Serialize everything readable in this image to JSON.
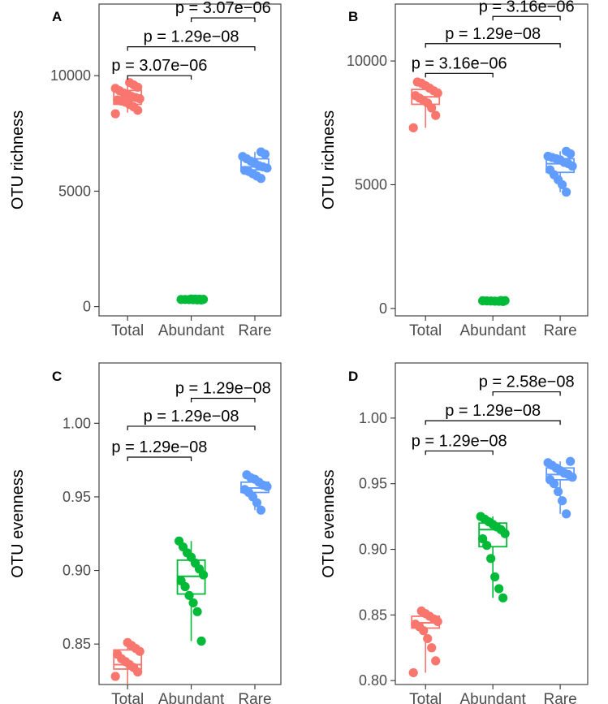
{
  "figure": {
    "description": "Four box plots comparing OTU richness and evenness across Total, Abundant and Rare subcommunities"
  },
  "chart_data": [
    {
      "panel": "A",
      "type": "box",
      "ylabel": "OTU richness",
      "xlabel": "",
      "categories": [
        "Total",
        "Abundant",
        "Rare"
      ],
      "colors": [
        "#F8766D",
        "#00BA38",
        "#619CFF"
      ],
      "ylim": [
        -400,
        13100
      ],
      "yticks": [
        0,
        5000,
        10000
      ],
      "boxes": [
        {
          "q1": 8760,
          "median": 8980,
          "q3": 9360,
          "lo": 8400,
          "hi": 9700
        },
        {
          "q1": 300,
          "median": 310,
          "q3": 320,
          "lo": 290,
          "hi": 330
        },
        {
          "q1": 5920,
          "median": 6050,
          "q3": 6400,
          "lo": 5550,
          "hi": 6700
        }
      ],
      "points": [
        [
          8350,
          8500,
          8650,
          8750,
          8850,
          8900,
          8950,
          9000,
          9050,
          9100,
          9200,
          9250,
          9350,
          9450,
          9500,
          9600,
          9700
        ],
        [
          290,
          295,
          300,
          305,
          310,
          310,
          315,
          320,
          325,
          330
        ],
        [
          5550,
          5650,
          5750,
          5850,
          5900,
          6000,
          6050,
          6100,
          6200,
          6300,
          6400,
          6500,
          6600,
          6700
        ]
      ],
      "comparisons": [
        {
          "label": "p = 3.07e−06",
          "pair": [
            0,
            1
          ],
          "y": 10000
        },
        {
          "label": "p = 1.29e−08",
          "pair": [
            0,
            2
          ],
          "y": 11250
        },
        {
          "label": "p = 3.07e−06",
          "pair": [
            1,
            2
          ],
          "y": 12500
        }
      ]
    },
    {
      "panel": "B",
      "type": "box",
      "ylabel": "OTU richness",
      "xlabel": "",
      "categories": [
        "Total",
        "Abundant",
        "Rare"
      ],
      "colors": [
        "#F8766D",
        "#00BA38",
        "#619CFF"
      ],
      "ylim": [
        -300,
        12300
      ],
      "yticks": [
        0,
        5000,
        10000
      ],
      "boxes": [
        {
          "q1": 8250,
          "median": 8550,
          "q3": 8850,
          "lo": 7300,
          "hi": 9150
        },
        {
          "q1": 290,
          "median": 300,
          "q3": 310,
          "lo": 280,
          "hi": 320
        },
        {
          "q1": 5500,
          "median": 5850,
          "q3": 6050,
          "lo": 4700,
          "hi": 6350
        }
      ],
      "points": [
        [
          7300,
          7800,
          8100,
          8300,
          8400,
          8500,
          8600,
          8700,
          8800,
          8900,
          9000,
          9100,
          9150
        ],
        [
          280,
          290,
          295,
          300,
          305,
          310,
          315,
          320
        ],
        [
          4700,
          5000,
          5200,
          5400,
          5600,
          5750,
          5850,
          5900,
          6000,
          6050,
          6100,
          6150,
          6250,
          6350
        ]
      ],
      "comparisons": [
        {
          "label": "p = 3.16e−06",
          "pair": [
            0,
            1
          ],
          "y": 9500
        },
        {
          "label": "p = 1.29e−08",
          "pair": [
            0,
            2
          ],
          "y": 10700
        },
        {
          "label": "p = 3.16e−06",
          "pair": [
            1,
            2
          ],
          "y": 11800
        }
      ]
    },
    {
      "panel": "C",
      "type": "box",
      "ylabel": "OTU evenness",
      "xlabel": "",
      "categories": [
        "Total",
        "Abundant",
        "Rare"
      ],
      "colors": [
        "#F8766D",
        "#00BA38",
        "#619CFF"
      ],
      "ylim": [
        0.8225,
        1.041
      ],
      "yticks": [
        0.85,
        0.9,
        0.95,
        1.0
      ],
      "ytick_labels": [
        "0.85",
        "0.90",
        "0.95",
        "1.00"
      ],
      "boxes": [
        {
          "q1": 0.833,
          "median": 0.836,
          "q3": 0.846,
          "lo": 0.823,
          "hi": 0.851
        },
        {
          "q1": 0.884,
          "median": 0.896,
          "q3": 0.907,
          "lo": 0.852,
          "hi": 0.92
        },
        {
          "q1": 0.953,
          "median": 0.956,
          "q3": 0.96,
          "lo": 0.941,
          "hi": 0.965
        }
      ],
      "points": [
        [
          0.828,
          0.831,
          0.834,
          0.836,
          0.838,
          0.84,
          0.843,
          0.845,
          0.847,
          0.849,
          0.851
        ],
        [
          0.852,
          0.872,
          0.878,
          0.883,
          0.889,
          0.893,
          0.897,
          0.901,
          0.905,
          0.909,
          0.912,
          0.916,
          0.92
        ],
        [
          0.941,
          0.946,
          0.95,
          0.953,
          0.955,
          0.957,
          0.958,
          0.96,
          0.962,
          0.963,
          0.965
        ]
      ],
      "comparisons": [
        {
          "label": "p = 1.29e−08",
          "pair": [
            0,
            1
          ],
          "y": 0.977
        },
        {
          "label": "p = 1.29e−08",
          "pair": [
            0,
            2
          ],
          "y": 0.998
        },
        {
          "label": "p = 1.29e−08",
          "pair": [
            1,
            2
          ],
          "y": 1.017
        }
      ]
    },
    {
      "panel": "D",
      "type": "box",
      "ylabel": "OTU evenness",
      "xlabel": "",
      "categories": [
        "Total",
        "Abundant",
        "Rare"
      ],
      "colors": [
        "#F8766D",
        "#00BA38",
        "#619CFF"
      ],
      "ylim": [
        0.797,
        1.042
      ],
      "yticks": [
        0.8,
        0.85,
        0.9,
        0.95,
        1.0
      ],
      "ytick_labels": [
        "0.80",
        "0.85",
        "0.90",
        "0.95",
        "1.00"
      ],
      "boxes": [
        {
          "q1": 0.84,
          "median": 0.844,
          "q3": 0.849,
          "lo": 0.806,
          "hi": 0.853
        },
        {
          "q1": 0.902,
          "median": 0.915,
          "q3": 0.92,
          "lo": 0.863,
          "hi": 0.925
        },
        {
          "q1": 0.953,
          "median": 0.957,
          "q3": 0.962,
          "lo": 0.927,
          "hi": 0.967
        }
      ],
      "points": [
        [
          0.806,
          0.815,
          0.825,
          0.832,
          0.838,
          0.841,
          0.843,
          0.845,
          0.847,
          0.849,
          0.851,
          0.853
        ],
        [
          0.863,
          0.87,
          0.879,
          0.893,
          0.903,
          0.908,
          0.912,
          0.915,
          0.917,
          0.919,
          0.921,
          0.923,
          0.925
        ],
        [
          0.927,
          0.937,
          0.944,
          0.95,
          0.953,
          0.955,
          0.957,
          0.958,
          0.96,
          0.962,
          0.964,
          0.966,
          0.967
        ]
      ],
      "comparisons": [
        {
          "label": "p = 1.29e−08",
          "pair": [
            0,
            1
          ],
          "y": 0.975
        },
        {
          "label": "p = 1.29e−08",
          "pair": [
            0,
            2
          ],
          "y": 0.998
        },
        {
          "label": "p = 2.58e−08",
          "pair": [
            1,
            2
          ],
          "y": 1.02
        }
      ]
    }
  ]
}
